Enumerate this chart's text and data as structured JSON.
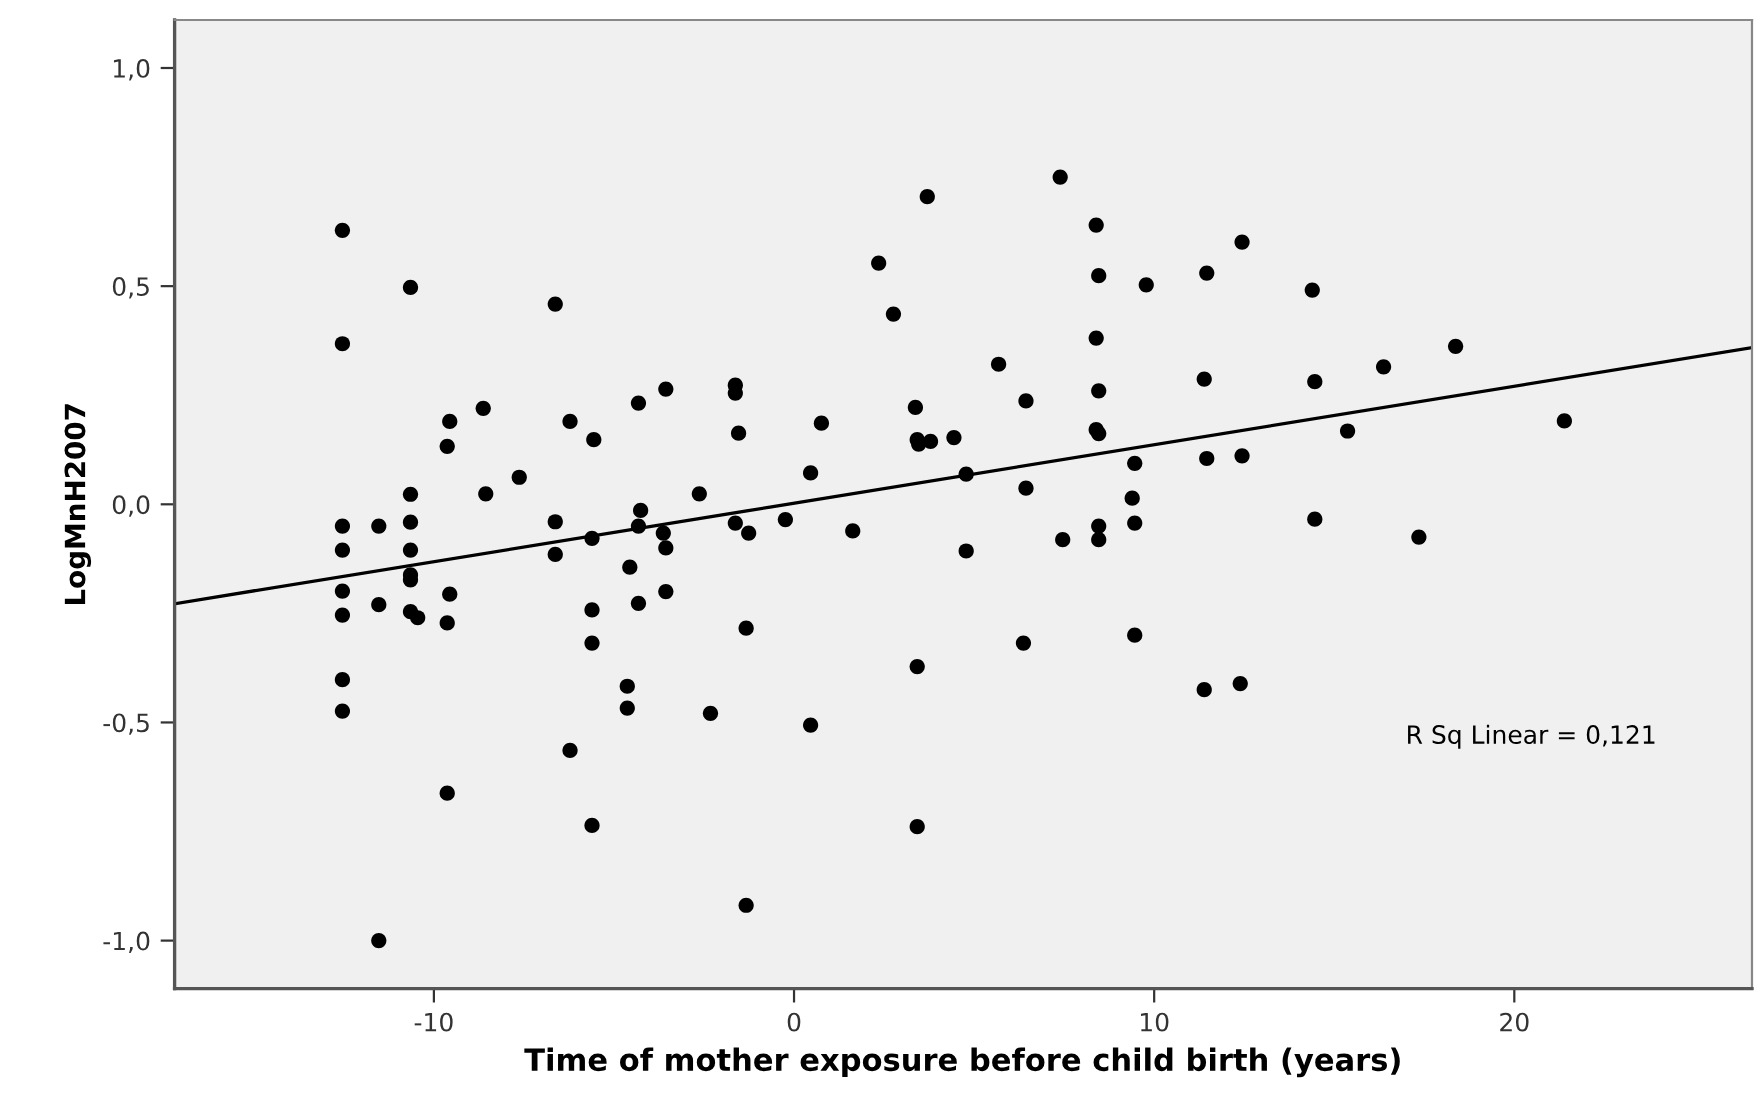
{
  "chart_data": {
    "type": "scatter",
    "xlabel": "Time of mother exposure before child birth (years)",
    "ylabel": "LogMnH2007",
    "xlim": [
      -17.2,
      26.6
    ],
    "ylim": [
      -1.11,
      1.11
    ],
    "xticks": [
      {
        "value": -10,
        "label": "-10"
      },
      0,
      10,
      20
    ],
    "yticks": [
      {
        "value": -1.0,
        "label": "-1,0"
      },
      {
        "value": -0.5,
        "label": "-0,5"
      },
      {
        "value": 0.0,
        "label": "0,0"
      },
      {
        "value": 0.5,
        "label": "0,5"
      },
      {
        "value": 1.0,
        "label": "1,0"
      }
    ],
    "grid": false,
    "legend": false,
    "marker": "circle",
    "annotations": [
      "R Sq Linear = 0,121"
    ],
    "series": [
      {
        "color": "#000000",
        "x": [
          -12.54,
          -12.54,
          -12.54,
          -12.54,
          -12.54,
          -12.54,
          -12.54,
          -12.54,
          -11.53,
          -11.53,
          -11.53,
          -10.65,
          -10.65,
          -10.65,
          -10.65,
          -10.65,
          -10.65,
          -10.65,
          -10.45,
          -9.56,
          -9.63,
          -9.56,
          -9.63,
          -9.63,
          -8.63,
          -8.56,
          -7.63,
          -6.63,
          -6.63,
          -6.63,
          -6.22,
          -5.56,
          -5.61,
          -5.61,
          -5.61,
          -6.22,
          -5.61,
          -4.32,
          -3.56,
          -4.26,
          -4.32,
          -3.63,
          -3.56,
          -4.56,
          -4.32,
          -3.56,
          -4.63,
          -4.63,
          -2.32,
          -2.63,
          -1.63,
          -1.63,
          -1.54,
          -1.63,
          -1.26,
          -1.33,
          -1.33,
          -0.24,
          0.46,
          0.76,
          1.63,
          2.35,
          2.76,
          3.37,
          3.42,
          3.46,
          3.79,
          3.7,
          4.44,
          4.78,
          4.78,
          5.68,
          6.44,
          6.44,
          7.39,
          7.46,
          8.39,
          8.46,
          8.39,
          8.46,
          8.39,
          8.46,
          8.46,
          8.46,
          9.78,
          9.46,
          9.39,
          9.46,
          11.46,
          11.39,
          11.46,
          12.44,
          12.44,
          14.39,
          14.46,
          14.46,
          3.42,
          0.46,
          3.42,
          6.37,
          9.46,
          11.39,
          12.39,
          15.37,
          16.37,
          18.37,
          21.39,
          17.35
        ],
        "values": [
          0.628,
          0.368,
          -0.05,
          -0.105,
          -0.199,
          -0.254,
          -0.402,
          -0.474,
          -0.05,
          -0.23,
          -1.0,
          0.497,
          0.023,
          -0.041,
          -0.105,
          -0.162,
          -0.173,
          -0.246,
          -0.26,
          0.19,
          0.133,
          -0.206,
          -0.272,
          -0.662,
          0.22,
          0.024,
          0.062,
          0.459,
          -0.04,
          -0.115,
          0.19,
          0.148,
          -0.078,
          -0.242,
          -0.318,
          -0.564,
          -0.736,
          0.232,
          0.264,
          -0.014,
          -0.05,
          -0.066,
          -0.1,
          -0.144,
          -0.227,
          -0.2,
          -0.417,
          -0.467,
          -0.479,
          0.024,
          0.273,
          0.255,
          0.163,
          -0.043,
          -0.066,
          -0.284,
          -0.919,
          -0.035,
          0.072,
          0.186,
          -0.061,
          0.553,
          0.436,
          0.222,
          0.148,
          0.138,
          0.144,
          0.705,
          0.153,
          0.069,
          -0.107,
          0.321,
          0.237,
          0.037,
          0.75,
          -0.081,
          0.64,
          0.524,
          0.381,
          0.26,
          0.171,
          0.162,
          -0.05,
          -0.081,
          0.503,
          0.094,
          0.014,
          -0.043,
          0.53,
          0.287,
          0.105,
          0.601,
          0.111,
          0.491,
          0.281,
          -0.034,
          -0.372,
          -0.506,
          -0.739,
          -0.318,
          -0.3,
          -0.425,
          -0.411,
          0.168,
          0.315,
          0.362,
          0.191,
          -0.075
        ]
      },
      {
        "type": "line",
        "color": "#000000",
        "marker": "none",
        "line_style": "solid",
        "x": [
          -17.2,
          26.6
        ],
        "values": [
          -0.228,
          0.359
        ]
      }
    ]
  }
}
